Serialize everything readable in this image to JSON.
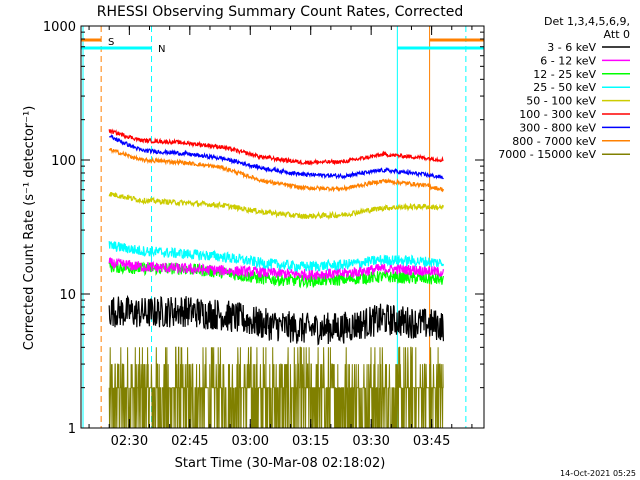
{
  "chart_data": {
    "type": "line",
    "title": "RHESSI Observing Summary Count Rates, Corrected",
    "xlabel": "Start Time (30-Mar-08 02:18:02)",
    "ylabel": "Corrected Count Rate (s⁻¹ detector⁻¹)",
    "y_scale": "log",
    "ylim": [
      1,
      1000
    ],
    "y_ticks": [
      {
        "value": 1,
        "label": "1"
      },
      {
        "value": 10,
        "label": "10"
      },
      {
        "value": 100,
        "label": "100"
      },
      {
        "value": 1000,
        "label": "1000"
      }
    ],
    "x_range_minutes": [
      0,
      100
    ],
    "x_ticks": [
      {
        "minute": 12,
        "label": "02:30"
      },
      {
        "minute": 27,
        "label": "02:45"
      },
      {
        "minute": 42,
        "label": "03:00"
      },
      {
        "minute": 57,
        "label": "03:15"
      },
      {
        "minute": 72,
        "label": "03:30"
      },
      {
        "minute": 87,
        "label": "03:45"
      }
    ],
    "legend": {
      "header": [
        "Det 1,3,4,5,6,9,",
        "Att 0"
      ],
      "placement": "right"
    },
    "series": [
      {
        "name": "3 - 6 keV",
        "color": "#000000",
        "x": [
          7,
          15,
          25,
          35,
          45,
          55,
          65,
          75,
          85,
          90
        ],
        "y": [
          7.5,
          7.2,
          7.5,
          7.0,
          6.0,
          5.5,
          5.6,
          6.5,
          6.0,
          5.8
        ],
        "noise": 0.12
      },
      {
        "name": "6 - 12 keV",
        "color": "#ff00ff",
        "x": [
          7,
          15,
          25,
          35,
          45,
          55,
          65,
          75,
          85,
          90
        ],
        "y": [
          17,
          16,
          15.5,
          15,
          14.5,
          14,
          14.2,
          15.5,
          15,
          14.5
        ],
        "noise": 0.04
      },
      {
        "name": "12 - 25 keV",
        "color": "#00ff00",
        "x": [
          7,
          15,
          25,
          35,
          45,
          55,
          65,
          75,
          85,
          90
        ],
        "y": [
          16,
          15.5,
          15.5,
          14.5,
          13,
          12.5,
          12.8,
          13.5,
          13,
          12.8
        ],
        "noise": 0.045
      },
      {
        "name": "25 - 50 keV",
        "color": "#00ffff",
        "x": [
          7,
          15,
          25,
          35,
          45,
          55,
          65,
          75,
          85,
          90
        ],
        "y": [
          23,
          21,
          20,
          19,
          17,
          16,
          16.5,
          18,
          17.5,
          17
        ],
        "noise": 0.04
      },
      {
        "name": "50 - 100 keV",
        "color": "#cccc00",
        "x": [
          7,
          15,
          25,
          35,
          45,
          55,
          65,
          75,
          85,
          90
        ],
        "y": [
          56,
          50,
          48,
          46,
          41,
          38,
          39,
          44,
          45,
          44
        ],
        "noise": 0.02
      },
      {
        "name": "100 - 300 keV",
        "color": "#ff0000",
        "x": [
          7,
          15,
          25,
          35,
          45,
          55,
          65,
          75,
          85,
          90
        ],
        "y": [
          165,
          140,
          135,
          125,
          105,
          96,
          97,
          110,
          104,
          100
        ],
        "noise": 0.015
      },
      {
        "name": "300 - 800 keV",
        "color": "#0000ff",
        "x": [
          7,
          15,
          25,
          35,
          45,
          55,
          65,
          75,
          85,
          90
        ],
        "y": [
          150,
          118,
          112,
          103,
          87,
          78,
          76,
          84,
          78,
          74
        ],
        "noise": 0.015
      },
      {
        "name": "800 - 7000 keV",
        "color": "#ff8000",
        "x": [
          7,
          15,
          25,
          35,
          45,
          55,
          65,
          75,
          85,
          90
        ],
        "y": [
          120,
          100,
          96,
          88,
          70,
          62,
          61,
          70,
          65,
          60
        ],
        "noise": 0.015
      },
      {
        "name": "7000 - 15000 keV",
        "color": "#808000",
        "x": [
          7,
          15,
          25,
          35,
          45,
          55,
          65,
          75,
          85,
          90
        ],
        "y": [
          2,
          2,
          2,
          2,
          2,
          2,
          2,
          2,
          2,
          2
        ],
        "noise": 0
      }
    ],
    "annotations": [
      {
        "label": "S",
        "color": "#ff8000"
      },
      {
        "label": "N",
        "color": "#00ffff"
      }
    ],
    "footer_date": "14-Oct-2021 05:25"
  }
}
